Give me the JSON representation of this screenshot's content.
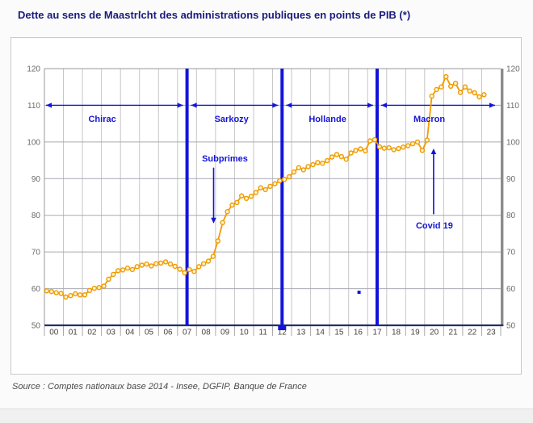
{
  "page": {
    "title": "Dette au sens de Maastricht des administrations publiques en points de PIB (*)",
    "source": "Source : Comptes nationaux base 2014 - Insee, DGFIP, Banque de France"
  },
  "chart_data": {
    "type": "line",
    "title": "Dette au sens de Maastricht des administrations publiques en points de PIB (*)",
    "ylabel": "en points de PIB",
    "xlabel": "",
    "ylim": [
      50,
      120
    ],
    "yticks": [
      50,
      60,
      70,
      80,
      90,
      100,
      110,
      120
    ],
    "grid": true,
    "legend_position": "none",
    "x_tick_labels": [
      "00",
      "01",
      "02",
      "03",
      "04",
      "05",
      "06",
      "07",
      "08",
      "09",
      "10",
      "11",
      "12",
      "13",
      "14",
      "15",
      "16",
      "17",
      "18",
      "19",
      "20",
      "21",
      "22",
      "23"
    ],
    "series": [
      {
        "name": "Dette publique en points de PIB",
        "frequency": "quarterly",
        "start_period": "2000-Q1",
        "end_period": "2023-Q1",
        "x_start": 2000.125,
        "x_step": 0.25,
        "values": [
          59.4,
          59.2,
          58.9,
          58.7,
          57.7,
          58.1,
          58.6,
          58.3,
          58.3,
          59.5,
          60.1,
          60.3,
          60.7,
          62.6,
          63.9,
          64.9,
          65.1,
          65.6,
          65.2,
          66.0,
          66.4,
          66.7,
          66.2,
          66.8,
          67.0,
          67.3,
          66.7,
          66.1,
          65.3,
          64.3,
          65.2,
          64.7,
          66.0,
          66.8,
          67.5,
          68.8,
          73.0,
          78.0,
          81.0,
          82.8,
          83.5,
          85.3,
          84.6,
          85.2,
          86.2,
          87.5,
          87.0,
          87.9,
          88.6,
          89.4,
          89.8,
          90.5,
          91.8,
          93.0,
          92.4,
          93.3,
          93.8,
          94.4,
          94.2,
          94.9,
          95.9,
          96.6,
          96.0,
          95.3,
          97.0,
          97.7,
          98.1,
          97.6,
          100.3,
          100.6,
          98.7,
          98.3,
          98.4,
          97.9,
          98.2,
          98.6,
          99.0,
          99.5,
          100.0,
          97.7,
          100.5,
          112.5,
          114.3,
          115.0,
          117.8,
          115.2,
          116.0,
          113.5,
          115.0,
          113.9,
          113.4,
          112.3,
          112.9
        ]
      }
    ],
    "dividers_x_years": [
      2007.5,
      2012.5,
      2017.5
    ],
    "divider_foot_x_year": 2012.5,
    "periods": [
      {
        "label": "Chirac",
        "from_year": 2000,
        "to_year": 2007.5,
        "label_x_year": 2003.0
      },
      {
        "label": "Sarkozy",
        "from_year": 2007.5,
        "to_year": 2012.5,
        "label_x_year": 2009.8
      },
      {
        "label": "Hollande",
        "from_year": 2012.5,
        "to_year": 2017.5,
        "label_x_year": 2014.85
      },
      {
        "label": "Macron",
        "from_year": 2017.5,
        "to_year": 2024,
        "label_x_year": 2020.2
      }
    ],
    "period_arrows_value": 110,
    "period_labels_value": 106.3,
    "annotations": [
      {
        "label": "Subprimes",
        "arrow": "down",
        "x_year": 2008.9,
        "text_x_year": 2009.45,
        "text_value": 95.6,
        "arrow_from_value": 93.0,
        "arrow_to_value": 77.8
      },
      {
        "label": "Covid 19",
        "arrow": "up",
        "x_year": 2020.47,
        "text_x_year": 2020.47,
        "text_value": 77.4,
        "arrow_from_value": 80.3,
        "arrow_to_value": 98.2
      }
    ],
    "stray_mark": {
      "x_year": 2016.55,
      "value": 59.0
    },
    "colors": {
      "line": "#F09C00",
      "marker_fill": "#FFF3D6",
      "annotation_blue": "#1414D8",
      "axis": "#232F66",
      "grid_vertical": "#C6C6C6",
      "grid_horizontal": "#A8AAB2",
      "frame": "#9A9A9A",
      "right_border": "#8C8C8C",
      "tick_text": "#6B6B6B",
      "year_text": "#444444"
    }
  }
}
